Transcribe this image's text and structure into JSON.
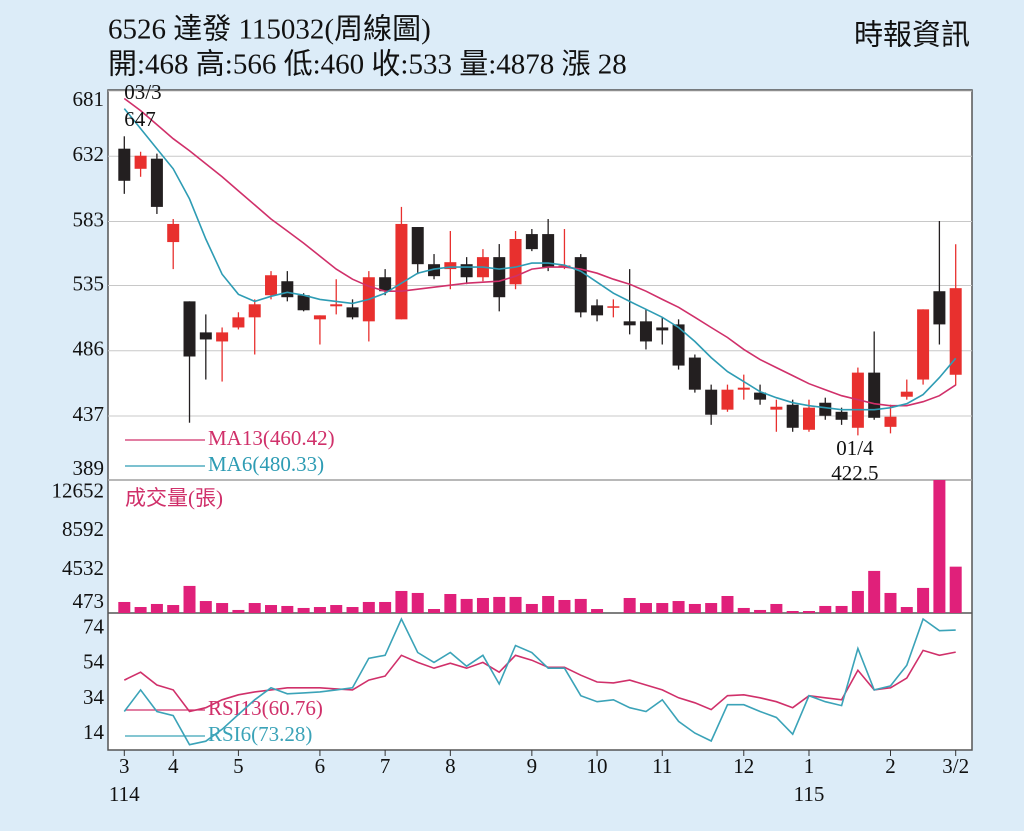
{
  "header": {
    "title": "6526  達發 115032(周線圖)",
    "quote": "開:468 高:566 低:460 收:533 量:4878 漲 28",
    "source": "時報資訊"
  },
  "chart_data": [
    {
      "type": "candlestick",
      "xlim": [
        -1,
        52
      ],
      "ylim": [
        389,
        681
      ],
      "yticks": [
        389,
        437,
        486,
        535,
        583,
        632,
        681
      ],
      "grid": true,
      "up_color": "#e8302e",
      "down_color": "#231f20",
      "open": [
        637.7,
        622.6,
        630.2,
        567.6,
        523.1,
        499.8,
        493,
        503.5,
        511.1,
        527.7,
        538.2,
        527.7,
        509.6,
        519.4,
        518.6,
        508.1,
        541.2,
        509.6,
        578.9,
        551,
        547.3,
        551,
        541.2,
        556.3,
        535.9,
        573.6,
        573.6,
        550,
        556.3,
        520.1,
        519.4,
        508.1,
        508.1,
        503.5,
        505.8,
        480.9,
        456.8,
        441.8,
        456.8,
        454.6,
        441.8,
        445.5,
        426.7,
        447,
        440.2,
        428.2,
        469.6,
        428.9,
        451.5,
        464.4,
        530.7,
        468
      ],
      "high": [
        647,
        635.4,
        634,
        584.9,
        523.1,
        513.3,
        503.5,
        514.9,
        524.6,
        545.8,
        545.8,
        529.2,
        512.6,
        539.7,
        524.6,
        545.8,
        547.3,
        594,
        578.9,
        558.6,
        575.9,
        556.3,
        562.3,
        566.1,
        575.9,
        577.4,
        584.9,
        577.4,
        558.6,
        524.6,
        524.6,
        547.3,
        517.1,
        511.1,
        509.6,
        483.2,
        460.6,
        460.6,
        468.1,
        460.6,
        449.3,
        449.3,
        449.3,
        450.8,
        443.3,
        473.4,
        500.5,
        445.5,
        464.4,
        517.1,
        583.4,
        566
      ],
      "low": [
        603.8,
        616.6,
        588.7,
        547.3,
        432,
        464.4,
        462.9,
        502,
        483.2,
        524.6,
        523.1,
        515.6,
        490.7,
        513.3,
        509.6,
        493,
        527.7,
        509.6,
        543.5,
        539.7,
        532.2,
        536,
        538.2,
        515.6,
        532.2,
        560.8,
        545.8,
        547.3,
        511.1,
        508.1,
        511.1,
        498.3,
        487,
        490.7,
        471.9,
        454.6,
        430.4,
        440.2,
        449.3,
        445.5,
        425.2,
        425.2,
        425.2,
        434.2,
        430.4,
        422.5,
        434.2,
        424,
        449.3,
        460.6,
        490.7,
        460
      ],
      "close": [
        613.6,
        632.4,
        594.0,
        581.2,
        481.7,
        494.5,
        499.8,
        511.1,
        520.9,
        542.7,
        526.2,
        516.4,
        512.6,
        520.9,
        511.1,
        541.2,
        530.7,
        581.2,
        551,
        542,
        552.5,
        541.2,
        556.3,
        526.2,
        569.9,
        562.3,
        548.8,
        550,
        514.8,
        512.6,
        519.4,
        505.1,
        493,
        501.3,
        474.9,
        456.8,
        438,
        456.8,
        458.3,
        449.3,
        444,
        428.2,
        443.3,
        437.2,
        434.2,
        469.6,
        435.7,
        436.5,
        455.3,
        517.1,
        505.8,
        533
      ],
      "series": [
        {
          "name": "MA13(460.42)",
          "color": "#d0306a",
          "values": [
            675.4,
            666.3,
            655.8,
            645.2,
            636.2,
            626.4,
            616.6,
            606.0,
            595.5,
            584.9,
            575.9,
            566.8,
            557.1,
            547.3,
            539.7,
            534.4,
            530.7,
            530.7,
            532.2,
            533.7,
            535.2,
            536.7,
            537.5,
            538.2,
            542.0,
            547.3,
            548.8,
            548.8,
            547.3,
            544.2,
            539.7,
            536.0,
            530.7,
            524.6,
            518.6,
            511.1,
            503.5,
            496.0,
            487.0,
            479.4,
            473.4,
            467.4,
            461.3,
            456.8,
            452.3,
            449.3,
            446.3,
            444.8,
            444.8,
            447.8,
            452.3,
            460.42
          ]
        },
        {
          "name": "MA6(480.33)",
          "color": "#2e9cb4",
          "values": [
            667.8,
            652.8,
            637.7,
            622.6,
            600.0,
            569.9,
            543.5,
            528.4,
            523.1,
            526.9,
            529.9,
            527.7,
            524.6,
            523.1,
            521.6,
            524.6,
            529.2,
            536.7,
            544.2,
            547.3,
            548.8,
            548.8,
            548.8,
            547.3,
            548.8,
            551.8,
            551.8,
            550.3,
            545.7,
            537.5,
            529.2,
            523.1,
            517.1,
            511.1,
            503.5,
            493.0,
            480.9,
            470.4,
            462.9,
            455.3,
            450.8,
            447.0,
            444.8,
            443.3,
            441.8,
            441.8,
            441.8,
            443.3,
            446.3,
            453.1,
            465.9,
            480.33
          ]
        }
      ],
      "annotations": [
        {
          "date": "03/3",
          "price": 647
        },
        {
          "date": "01/4",
          "price": 422.5
        }
      ]
    },
    {
      "type": "bar",
      "title": "成交量(張)",
      "title_color": "#d0306a",
      "color": "#e0207a",
      "ylim": [
        0,
        14000
      ],
      "yticks": [
        473,
        4532,
        8592,
        12652
      ],
      "values": [
        1160,
        630,
        950,
        840,
        2850,
        1260,
        1050,
        320,
        1050,
        840,
        740,
        530,
        630,
        840,
        630,
        1160,
        1160,
        2320,
        2110,
        420,
        2000,
        1480,
        1580,
        1690,
        1690,
        950,
        1790,
        1370,
        1480,
        420,
        null,
        1580,
        1050,
        1050,
        1260,
        950,
        1050,
        1790,
        530,
        320,
        950,
        210,
        210,
        740,
        740,
        2320,
        4430,
        2110,
        630,
        2640,
        14000,
        4878
      ]
    },
    {
      "type": "line",
      "ylim": [
        5,
        83
      ],
      "yticks": [
        14,
        34,
        54,
        74
      ],
      "series": [
        {
          "name": "RSI13(60.76)",
          "color": "#d0306a",
          "values": [
            44.8,
            49.3,
            42.0,
            39.2,
            26.9,
            29.1,
            33.6,
            36.4,
            38.1,
            39.2,
            40.4,
            40.4,
            40.4,
            39.8,
            39.2,
            44.8,
            47.1,
            58.9,
            54.9,
            51.6,
            54.4,
            51.6,
            54.9,
            49.3,
            58.9,
            56.1,
            52.1,
            52.1,
            47.6,
            43.7,
            43.2,
            44.8,
            42.0,
            39.2,
            34.7,
            31.9,
            28.0,
            35.9,
            36.4,
            34.7,
            32.5,
            29.1,
            35.9,
            34.7,
            33.6,
            50.4,
            39.2,
            40.4,
            46.0,
            61.7,
            58.9,
            60.76
          ]
        },
        {
          "name": "RSI6(73.28)",
          "color": "#3ba3b8",
          "values": [
            26.9,
            39.2,
            26.9,
            24.6,
            8,
            10,
            16.8,
            25.2,
            33.6,
            40.4,
            37.0,
            37.5,
            38.1,
            39.2,
            40.4,
            57.2,
            58.9,
            79.6,
            60.5,
            54.9,
            60.5,
            52.7,
            58.9,
            42.6,
            64.5,
            60.5,
            51.6,
            51.6,
            35.9,
            32.5,
            33.6,
            29.1,
            26.9,
            33.6,
            21.3,
            14.6,
            10.1,
            30.8,
            30.8,
            26.9,
            23.5,
            14.0,
            35.9,
            32.5,
            30.3,
            62.8,
            39.2,
            41.5,
            53.3,
            79.6,
            72.9,
            73.28
          ]
        }
      ],
      "xticks": [
        {
          "value": 0,
          "label": "3"
        },
        {
          "value": 3,
          "label": "4"
        },
        {
          "value": 7,
          "label": "5"
        },
        {
          "value": 12,
          "label": "6"
        },
        {
          "value": 16,
          "label": "7"
        },
        {
          "value": 20,
          "label": "8"
        },
        {
          "value": 25,
          "label": "9"
        },
        {
          "value": 29,
          "label": "10"
        },
        {
          "value": 33,
          "label": "11"
        },
        {
          "value": 38,
          "label": "12"
        },
        {
          "value": 42,
          "label": "1"
        },
        {
          "value": 47,
          "label": "2"
        },
        {
          "value": 51,
          "label": "3/2"
        }
      ],
      "year_labels": [
        {
          "value": 0,
          "label": "114"
        },
        {
          "value": 42,
          "label": "115"
        }
      ]
    }
  ]
}
